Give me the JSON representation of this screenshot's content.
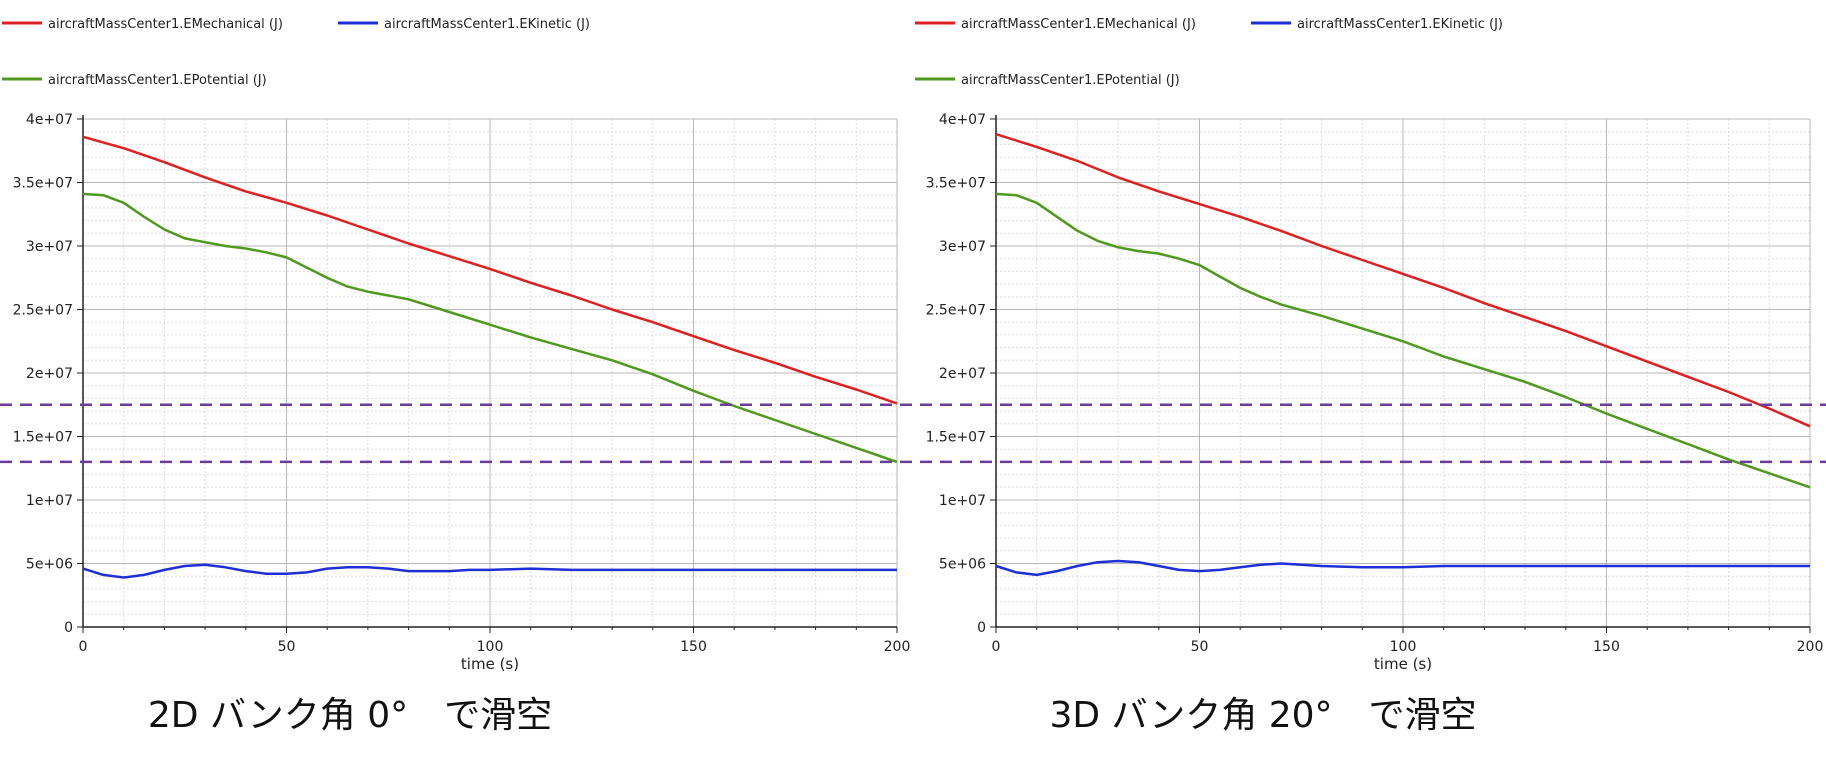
{
  "legend": {
    "mechanical": "aircraftMassCenter1.EMechanical (J)",
    "kinetic": "aircraftMassCenter1.EKinetic (J)",
    "potential": "aircraftMassCenter1.EPotential (J)"
  },
  "colors": {
    "mechanical": "#e02020",
    "kinetic": "#1e2fd6",
    "potential": "#4f9a1e",
    "reference": "#6a3d9a",
    "grid_major": "#b8b8b8",
    "grid_minor": "#dcdcdc"
  },
  "captions": {
    "left": "2D バンク角 0°　で滑空",
    "right": "3D バンク角 20°　で滑空"
  },
  "reference_lines": {
    "values": [
      17500000,
      13000000
    ],
    "style": "dashed"
  },
  "chart_data": [
    {
      "type": "line",
      "xlabel": "time (s)",
      "ylabel": "",
      "xlim": [
        0,
        200
      ],
      "ylim": [
        0,
        40000000
      ],
      "xticks": [
        "0",
        "50",
        "100",
        "150",
        "200"
      ],
      "yticks": [
        "0",
        "5e+06",
        "1e+07",
        "1.5e+07",
        "2e+07",
        "2.5e+07",
        "3e+07",
        "3.5e+07",
        "4e+07"
      ],
      "grid": true,
      "legend_position": "top",
      "series": [
        {
          "name": "aircraftMassCenter1.EMechanical (J)",
          "x": [
            0,
            10,
            20,
            30,
            40,
            50,
            60,
            70,
            80,
            90,
            100,
            110,
            120,
            130,
            140,
            150,
            160,
            170,
            180,
            190,
            200
          ],
          "values": [
            38600000,
            37700000,
            36600000,
            35400000,
            34300000,
            33400000,
            32400000,
            31300000,
            30200000,
            29200000,
            28200000,
            27100000,
            26100000,
            25000000,
            24000000,
            22900000,
            21800000,
            20800000,
            19700000,
            18700000,
            17600000
          ]
        },
        {
          "name": "aircraftMassCenter1.EKinetic (J)",
          "x": [
            0,
            5,
            10,
            15,
            20,
            25,
            30,
            35,
            40,
            45,
            50,
            55,
            60,
            65,
            70,
            75,
            80,
            85,
            90,
            95,
            100,
            110,
            120,
            130,
            140,
            150,
            160,
            170,
            180,
            190,
            200
          ],
          "values": [
            4600000,
            4100000,
            3900000,
            4100000,
            4500000,
            4800000,
            4900000,
            4700000,
            4400000,
            4200000,
            4200000,
            4300000,
            4600000,
            4700000,
            4700000,
            4600000,
            4400000,
            4400000,
            4400000,
            4500000,
            4500000,
            4600000,
            4500000,
            4500000,
            4500000,
            4500000,
            4500000,
            4500000,
            4500000,
            4500000,
            4500000
          ]
        },
        {
          "name": "aircraftMassCenter1.EPotential (J)",
          "x": [
            0,
            5,
            10,
            15,
            20,
            25,
            30,
            35,
            40,
            45,
            50,
            55,
            60,
            65,
            70,
            80,
            90,
            100,
            110,
            120,
            130,
            140,
            150,
            160,
            170,
            180,
            190,
            200
          ],
          "values": [
            34100000,
            34000000,
            33400000,
            32300000,
            31300000,
            30600000,
            30300000,
            30000000,
            29800000,
            29500000,
            29100000,
            28300000,
            27500000,
            26800000,
            26400000,
            25800000,
            24800000,
            23800000,
            22800000,
            21900000,
            21000000,
            19900000,
            18600000,
            17400000,
            16300000,
            15200000,
            14100000,
            13000000
          ]
        }
      ]
    },
    {
      "type": "line",
      "xlabel": "time (s)",
      "ylabel": "",
      "xlim": [
        0,
        200
      ],
      "ylim": [
        0,
        40000000
      ],
      "xticks": [
        "0",
        "50",
        "100",
        "150",
        "200"
      ],
      "yticks": [
        "0",
        "5e+06",
        "1e+07",
        "1.5e+07",
        "2e+07",
        "2.5e+07",
        "3e+07",
        "3.5e+07",
        "4e+07"
      ],
      "grid": true,
      "legend_position": "top",
      "series": [
        {
          "name": "aircraftMassCenter1.EMechanical (J)",
          "x": [
            0,
            10,
            20,
            30,
            40,
            50,
            60,
            70,
            80,
            90,
            100,
            110,
            120,
            130,
            140,
            150,
            160,
            170,
            180,
            190,
            200
          ],
          "values": [
            38800000,
            37800000,
            36700000,
            35400000,
            34300000,
            33300000,
            32300000,
            31200000,
            30000000,
            28900000,
            27800000,
            26700000,
            25500000,
            24400000,
            23300000,
            22100000,
            20900000,
            19700000,
            18500000,
            17200000,
            15800000
          ]
        },
        {
          "name": "aircraftMassCenter1.EKinetic (J)",
          "x": [
            0,
            5,
            10,
            15,
            20,
            25,
            30,
            35,
            40,
            45,
            50,
            55,
            60,
            65,
            70,
            75,
            80,
            90,
            100,
            110,
            120,
            130,
            140,
            150,
            160,
            170,
            180,
            190,
            200
          ],
          "values": [
            4800000,
            4300000,
            4100000,
            4400000,
            4800000,
            5100000,
            5200000,
            5100000,
            4800000,
            4500000,
            4400000,
            4500000,
            4700000,
            4900000,
            5000000,
            4900000,
            4800000,
            4700000,
            4700000,
            4800000,
            4800000,
            4800000,
            4800000,
            4800000,
            4800000,
            4800000,
            4800000,
            4800000,
            4800000
          ]
        },
        {
          "name": "aircraftMassCenter1.EPotential (J)",
          "x": [
            0,
            5,
            10,
            15,
            20,
            25,
            30,
            35,
            40,
            45,
            50,
            55,
            60,
            65,
            70,
            80,
            90,
            100,
            110,
            120,
            130,
            140,
            150,
            160,
            170,
            180,
            190,
            200
          ],
          "values": [
            34100000,
            34000000,
            33400000,
            32300000,
            31200000,
            30400000,
            29900000,
            29600000,
            29400000,
            29000000,
            28500000,
            27600000,
            26700000,
            26000000,
            25400000,
            24500000,
            23500000,
            22500000,
            21300000,
            20300000,
            19300000,
            18100000,
            16800000,
            15600000,
            14400000,
            13200000,
            12100000,
            11000000
          ]
        }
      ]
    }
  ]
}
